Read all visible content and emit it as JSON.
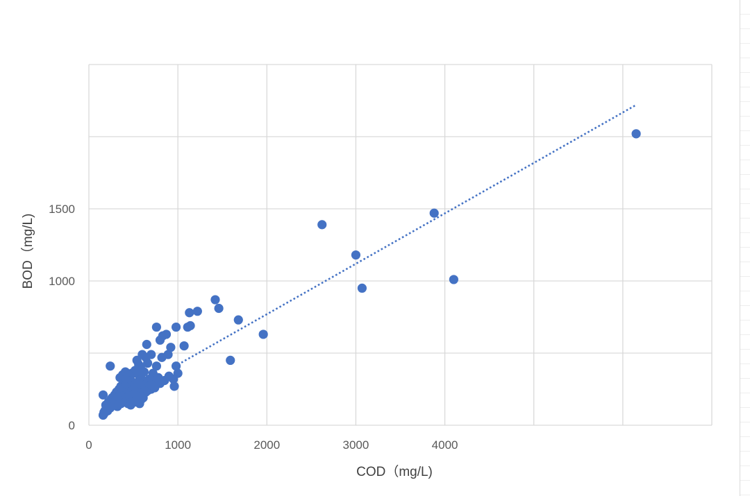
{
  "chart_data": {
    "type": "scatter",
    "title": "",
    "xlabel": "COD（mg/L)",
    "ylabel": "BOD（mg/L)",
    "xlim": [
      0,
      7000
    ],
    "ylim": [
      0,
      2500
    ],
    "x_ticks": [
      "0",
      "1000",
      "2000",
      "3000",
      "4000",
      "",
      "",
      ""
    ],
    "y_ticks": [
      "0",
      "",
      "1000",
      "1500",
      "",
      ""
    ],
    "grid": true,
    "legend": "none",
    "colors": {
      "points": "#4472C4",
      "trend": "#4472C4",
      "grid": "#d9d9d9"
    },
    "series": [
      {
        "x": [
          6150,
          3880,
          2620,
          3000,
          3070,
          4100,
          1420,
          1460,
          1680,
          1960,
          1590,
          1130,
          1220,
          1110,
          1140,
          980,
          1070,
          760,
          870,
          800,
          830,
          650,
          920,
          890,
          820,
          980,
          1000,
          950,
          960,
          240,
          160,
          600,
          640,
          540,
          700,
          760,
          560,
          480,
          450,
          520,
          580,
          620,
          660,
          720,
          780,
          420,
          390,
          360,
          340,
          310,
          290,
          270,
          250,
          230,
          210,
          200,
          180,
          170,
          160,
          350,
          380,
          410,
          440,
          470,
          500,
          530,
          560,
          590,
          620,
          650,
          680,
          710,
          740,
          260,
          300,
          330,
          370,
          400,
          430,
          460,
          490,
          520,
          550,
          580,
          610,
          640,
          670,
          700,
          280,
          320,
          360,
          400,
          440,
          480,
          520,
          560,
          600,
          640,
          190,
          220,
          250,
          280,
          310,
          340,
          370,
          400,
          430,
          460,
          490,
          520,
          550,
          580,
          610,
          230,
          260,
          290,
          320,
          350,
          380,
          410,
          440,
          470,
          500,
          530,
          560,
          590,
          210,
          240,
          270,
          300,
          330,
          360,
          390,
          420,
          450,
          480,
          510,
          540,
          570,
          170,
          200,
          230,
          260,
          290,
          320,
          350,
          380,
          410,
          440,
          470,
          500,
          800,
          850,
          900,
          720,
          760,
          680,
          620,
          580,
          540,
          660,
          700,
          740
        ],
        "y": [
          2020,
          1470,
          1390,
          1180,
          950,
          1010,
          870,
          810,
          730,
          630,
          450,
          780,
          790,
          680,
          690,
          680,
          550,
          680,
          630,
          590,
          620,
          560,
          540,
          490,
          470,
          410,
          360,
          320,
          270,
          410,
          210,
          490,
          470,
          450,
          490,
          410,
          420,
          360,
          330,
          380,
          400,
          370,
          430,
          360,
          330,
          330,
          300,
          270,
          250,
          230,
          210,
          180,
          160,
          140,
          130,
          110,
          100,
          90,
          70,
          330,
          350,
          370,
          340,
          310,
          360,
          380,
          350,
          320,
          300,
          290,
          320,
          310,
          280,
          190,
          210,
          230,
          260,
          290,
          310,
          270,
          250,
          280,
          300,
          260,
          240,
          230,
          270,
          250,
          170,
          200,
          240,
          270,
          230,
          210,
          240,
          220,
          200,
          250,
          140,
          160,
          180,
          200,
          220,
          250,
          230,
          210,
          190,
          220,
          240,
          260,
          230,
          210,
          190,
          120,
          140,
          170,
          190,
          210,
          200,
          180,
          170,
          190,
          210,
          230,
          200,
          180,
          100,
          120,
          150,
          170,
          160,
          150,
          170,
          190,
          200,
          180,
          160,
          170,
          150,
          80,
          110,
          130,
          150,
          140,
          130,
          150,
          170,
          160,
          150,
          140,
          160,
          290,
          310,
          340,
          270,
          300,
          250,
          230,
          210,
          200,
          240,
          280,
          260
        ]
      }
    ],
    "trendline": {
      "style": "dotted",
      "x": [
        1000,
        6150
      ],
      "y": [
        420,
        2220
      ]
    }
  }
}
